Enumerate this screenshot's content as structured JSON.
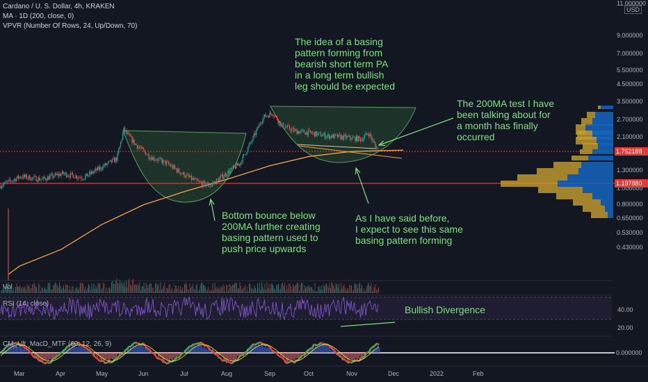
{
  "header": {
    "symbol": "Cardano / U. S. Dollar, 4h, KRAKEN",
    "ma_label": "MA · 1D (200, close, 0)",
    "vpvr_label": "VPVR (Number Of Rows, 24, Up/Down, 70)"
  },
  "price_axis": {
    "currency": "USD",
    "top_label": "11.000000",
    "ticks": [
      "9.000000",
      "7.000000",
      "5.500000",
      "4.500000",
      "3.500000",
      "2.700000",
      "2.100000",
      "1.300000",
      "1.000000",
      "0.800000",
      "0.650000",
      "0.530000",
      "0.430000"
    ]
  },
  "price_tags": {
    "current": "1.762188",
    "level": "1.197880"
  },
  "panes": {
    "volume_label": "Vol",
    "rsi_label": "RSI (14, close)",
    "rsi_ticks": [
      "40.00",
      "20.00"
    ],
    "macd_label": "CM_Ult_MacD_MTF (60, 12, 26, 9)",
    "macd_tick": "0.000000"
  },
  "time_axis": [
    "Mar",
    "Apr",
    "May",
    "Jun",
    "Jul",
    "Aug",
    "Sep",
    "Oct",
    "Nov",
    "Dec",
    "2022",
    "Feb"
  ],
  "annotations": {
    "basing_idea": "The idea of a basing\npattern forming from\nbearish short term PA\nin a long term bullish\nleg should be expected",
    "ma_test": "The 200MA test I have\nbeen talking about for\na month has finally\noccurred",
    "bottom_bounce": "Bottom bounce below\n200MA further creating\nbasing pattern used to\npush price upwards",
    "expect_same": "As I have said before,\nI expect to see this same\nbasing pattern forming",
    "divergence": "Bullish Divergence"
  },
  "colors": {
    "background": "#131722",
    "annotation": "#7ee081",
    "ma_line": "#f7a440",
    "level_line": "#e53935",
    "current_tag": "#e53935",
    "level_tag": "#e53935",
    "rsi_line": "#7e57c2",
    "candle_up": "#26a69a",
    "candle_down": "#ef5350",
    "vp_up": "#1565c0",
    "vp_down": "#c8a030",
    "macd_up": "#4caf50",
    "macd_down": "#f44336"
  },
  "chart_data": {
    "type": "line",
    "title": "Cardano / U. S. Dollar, 4h, KRAKEN",
    "scale": "log",
    "price_path": {
      "x": [
        "Mar",
        "Apr",
        "May",
        "May",
        "Jun",
        "Jul",
        "Jul",
        "Aug",
        "Sep",
        "Oct",
        "Nov",
        "Nov"
      ],
      "close": [
        1.05,
        1.2,
        1.4,
        2.35,
        1.5,
        1.1,
        1.05,
        1.5,
        3.0,
        2.2,
        2.0,
        1.76
      ]
    },
    "ma200_path": {
      "x": [
        "Mar",
        "Apr",
        "May",
        "Jun",
        "Jul",
        "Aug",
        "Sep",
        "Oct",
        "Nov",
        "Nov"
      ],
      "value": [
        0.33,
        0.42,
        0.6,
        0.8,
        0.97,
        1.15,
        1.4,
        1.6,
        1.72,
        1.75
      ]
    },
    "horizontal_levels": [
      1.762188,
      1.19788
    ],
    "rsi": {
      "levels": [
        30,
        70
      ],
      "ticks": [
        40,
        20
      ]
    },
    "volume_profile_rows": 24
  }
}
